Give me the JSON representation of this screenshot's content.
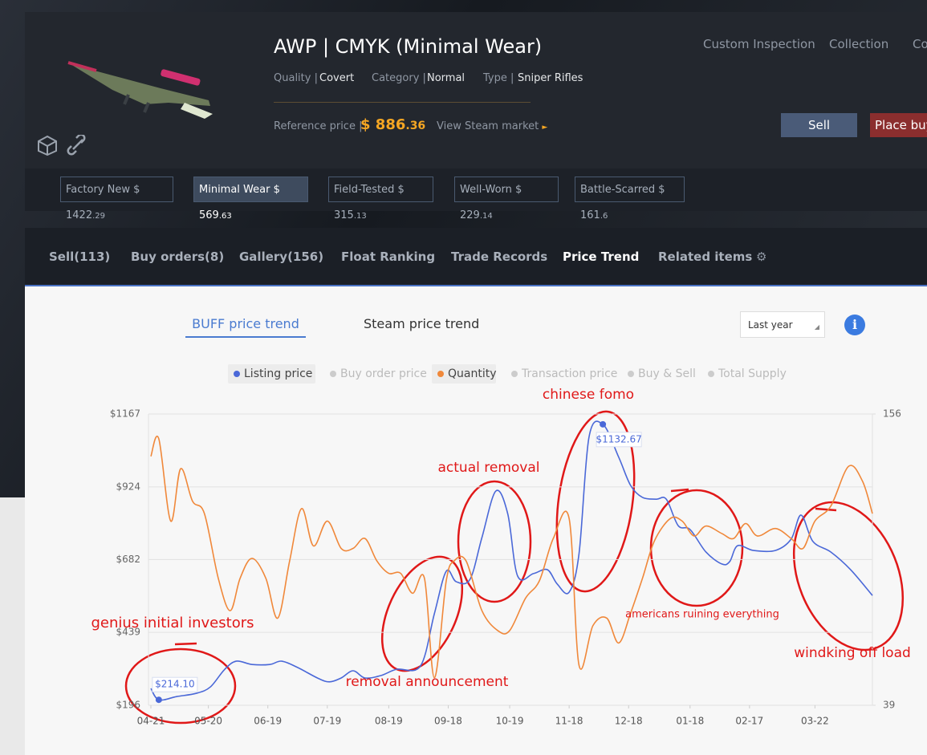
{
  "header": {
    "title": "AWP | CMYK (Minimal Wear)",
    "quality_label": "Quality |",
    "quality": "Covert",
    "category_label": "Category |",
    "category": "Normal",
    "type_label": "Type |",
    "type": "Sniper Rifles",
    "reference_label": "Reference price |",
    "reference_price": "$ 886",
    "reference_cents": ".36",
    "steam_link": "View Steam market",
    "top_links": [
      "Custom Inspection",
      "Collection",
      "Co"
    ],
    "sell_button": "Sell",
    "buy_button": "Place buy"
  },
  "wear_tabs": [
    {
      "name": "Factory New $ 1422",
      "cents": ".29"
    },
    {
      "name": "Minimal Wear $ 569",
      "cents": ".63"
    },
    {
      "name": "Field-Tested $ 315",
      "cents": ".13"
    },
    {
      "name": "Well-Worn $ 229",
      "cents": ".14"
    },
    {
      "name": "Battle-Scarred $ 161",
      "cents": ".6"
    }
  ],
  "tabs": [
    "Sell(113)",
    "Buy orders(8)",
    "Gallery(156)",
    "Float Ranking",
    "Trade Records",
    "Price Trend",
    "Related items"
  ],
  "trend_tabs": [
    "BUFF price trend",
    "Steam price trend"
  ],
  "range_select": "Last year",
  "chart_data": {
    "type": "line",
    "legend": [
      "Listing price",
      "Buy order price",
      "Quantity",
      "Transaction price",
      "Buy & Sell",
      "Total Supply"
    ],
    "xlim": [
      0,
      364
    ],
    "xticks": [
      {
        "value": 0,
        "label": "04-21"
      },
      {
        "value": 29,
        "label": "05-20"
      },
      {
        "value": 59,
        "label": "06-19"
      },
      {
        "value": 89,
        "label": "07-19"
      },
      {
        "value": 120,
        "label": "08-19"
      },
      {
        "value": 150,
        "label": "09-18"
      },
      {
        "value": 181,
        "label": "10-19"
      },
      {
        "value": 211,
        "label": "11-18"
      },
      {
        "value": 241,
        "label": "12-18"
      },
      {
        "value": 272,
        "label": "01-18"
      },
      {
        "value": 302,
        "label": "02-17"
      },
      {
        "value": 335,
        "label": "03-22"
      }
    ],
    "ylim": [
      196,
      1167
    ],
    "yticks": [
      {
        "value": 196,
        "label": "$196"
      },
      {
        "value": 439,
        "label": "$439"
      },
      {
        "value": 682,
        "label": "$682"
      },
      {
        "value": 924,
        "label": "$924"
      },
      {
        "value": 1167,
        "label": "$1167"
      }
    ],
    "y2lim": [
      39,
      156
    ],
    "y2ticks": [
      39,
      156
    ],
    "grid": true,
    "series": [
      {
        "name": "Listing price",
        "color": "#4a68d8",
        "x": [
          0,
          4,
          13,
          23,
          30,
          37,
          43,
          51,
          60,
          66,
          74,
          84,
          90,
          96,
          102,
          108,
          116,
          124,
          136,
          143,
          149,
          154,
          161,
          167,
          174,
          180,
          185,
          193,
          200,
          205,
          211,
          216,
          221,
          228,
          236,
          242,
          248,
          255,
          260,
          266,
          272,
          280,
          288,
          292,
          296,
          304,
          315,
          323,
          328,
          334,
          343,
          353,
          364
        ],
        "values": [
          252,
          214.1,
          225,
          236,
          257,
          314,
          343,
          332,
          332,
          343,
          322,
          287,
          274,
          287,
          311,
          287,
          295,
          316,
          327,
          501,
          643,
          608,
          616,
          755,
          910,
          835,
          627,
          635,
          648,
          600,
          573,
          702,
          1089,
          1132.67,
          1023,
          929,
          889,
          883,
          883,
          795,
          782,
          707,
          667,
          675,
          728,
          712,
          712,
          750,
          830,
          742,
          707,
          648,
          562
        ],
        "value_labels": [
          null,
          "$214.10",
          null,
          null,
          null,
          null,
          null,
          null,
          null,
          null,
          null,
          null,
          null,
          null,
          null,
          null,
          null,
          null,
          null,
          null,
          null,
          null,
          null,
          null,
          null,
          null,
          null,
          null,
          null,
          null,
          null,
          null,
          null,
          "$1132.67",
          null,
          null,
          null,
          null,
          null,
          null,
          null,
          null,
          null,
          null,
          null,
          null,
          null,
          null,
          null,
          null,
          null,
          null,
          null
        ]
      },
      {
        "name": "Quantity",
        "color": "#f0883a",
        "axis": "y2",
        "x": [
          0,
          4,
          10,
          15,
          21,
          27,
          34,
          40,
          45,
          51,
          58,
          64,
          70,
          76,
          82,
          89,
          96,
          102,
          108,
          114,
          120,
          126,
          132,
          138,
          143,
          149,
          153,
          159,
          167,
          175,
          181,
          189,
          196,
          203,
          211,
          216,
          223,
          230,
          236,
          242,
          248,
          254,
          262,
          268,
          274,
          280,
          288,
          294,
          300,
          306,
          315,
          323,
          329,
          335,
          343,
          352,
          359,
          364
        ],
        "values": [
          139,
          146,
          113,
          134,
          121,
          116,
          90,
          77,
          90,
          98,
          90,
          74,
          97,
          118,
          103,
          113,
          102,
          102,
          106,
          97,
          92,
          92,
          84,
          90,
          50,
          89,
          97,
          97,
          77,
          69,
          69,
          82,
          89,
          106,
          114,
          55,
          71,
          74,
          64,
          76,
          90,
          105,
          114,
          113,
          107,
          111,
          108,
          106,
          112,
          107,
          110,
          106,
          102,
          113,
          119,
          135,
          129,
          116
        ]
      }
    ],
    "annotations": [
      "chinese fomo",
      "actual removal",
      "genius initial investors",
      "removal announcement",
      "americans ruining everything",
      "windking off load"
    ]
  }
}
